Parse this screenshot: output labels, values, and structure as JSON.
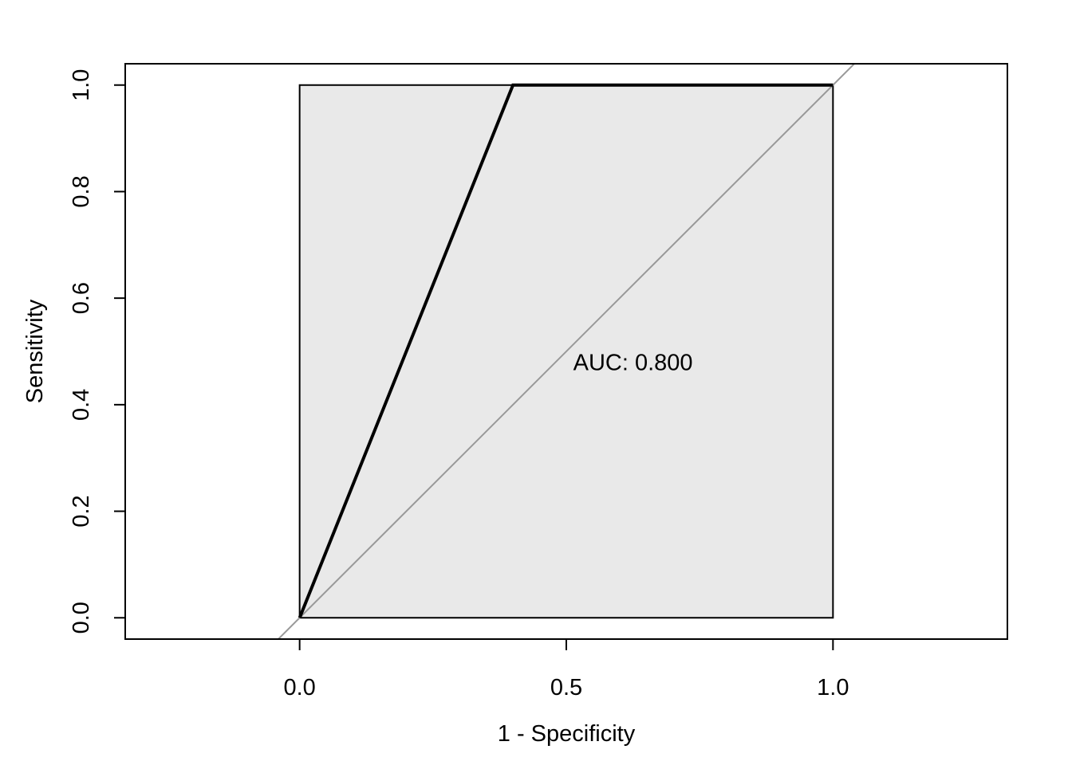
{
  "chart_data": {
    "type": "line",
    "title": "",
    "xlabel": "1 - Specificity",
    "ylabel": "Sensitivity",
    "xlim": [
      -0.327,
      1.327
    ],
    "ylim": [
      -0.04,
      1.04
    ],
    "grid": false,
    "xticks": [
      0.0,
      0.5,
      1.0
    ],
    "xtick_labels": [
      "0.0",
      "0.5",
      "1.0"
    ],
    "yticks": [
      0.0,
      0.2,
      0.4,
      0.6,
      0.8,
      1.0
    ],
    "ytick_labels": [
      "0.0",
      "0.2",
      "0.4",
      "0.6",
      "0.8",
      "1.0"
    ],
    "series": [
      {
        "x": [
          0.0,
          0.4,
          1.0
        ],
        "y": [
          0.0,
          1.0,
          1.0
        ],
        "color": "#000000"
      }
    ],
    "auc_polygon": {
      "x": [
        0.0,
        0.0,
        1.0,
        1.0
      ],
      "y": [
        0.0,
        1.0,
        1.0,
        0.0
      ],
      "fill": "#e9e9e9"
    },
    "reference_line": {
      "intercept": 0,
      "slope": 1,
      "color": "#999999"
    },
    "annotation": {
      "text": "AUC: 0.800",
      "x": 0.625,
      "y": 0.48
    }
  }
}
